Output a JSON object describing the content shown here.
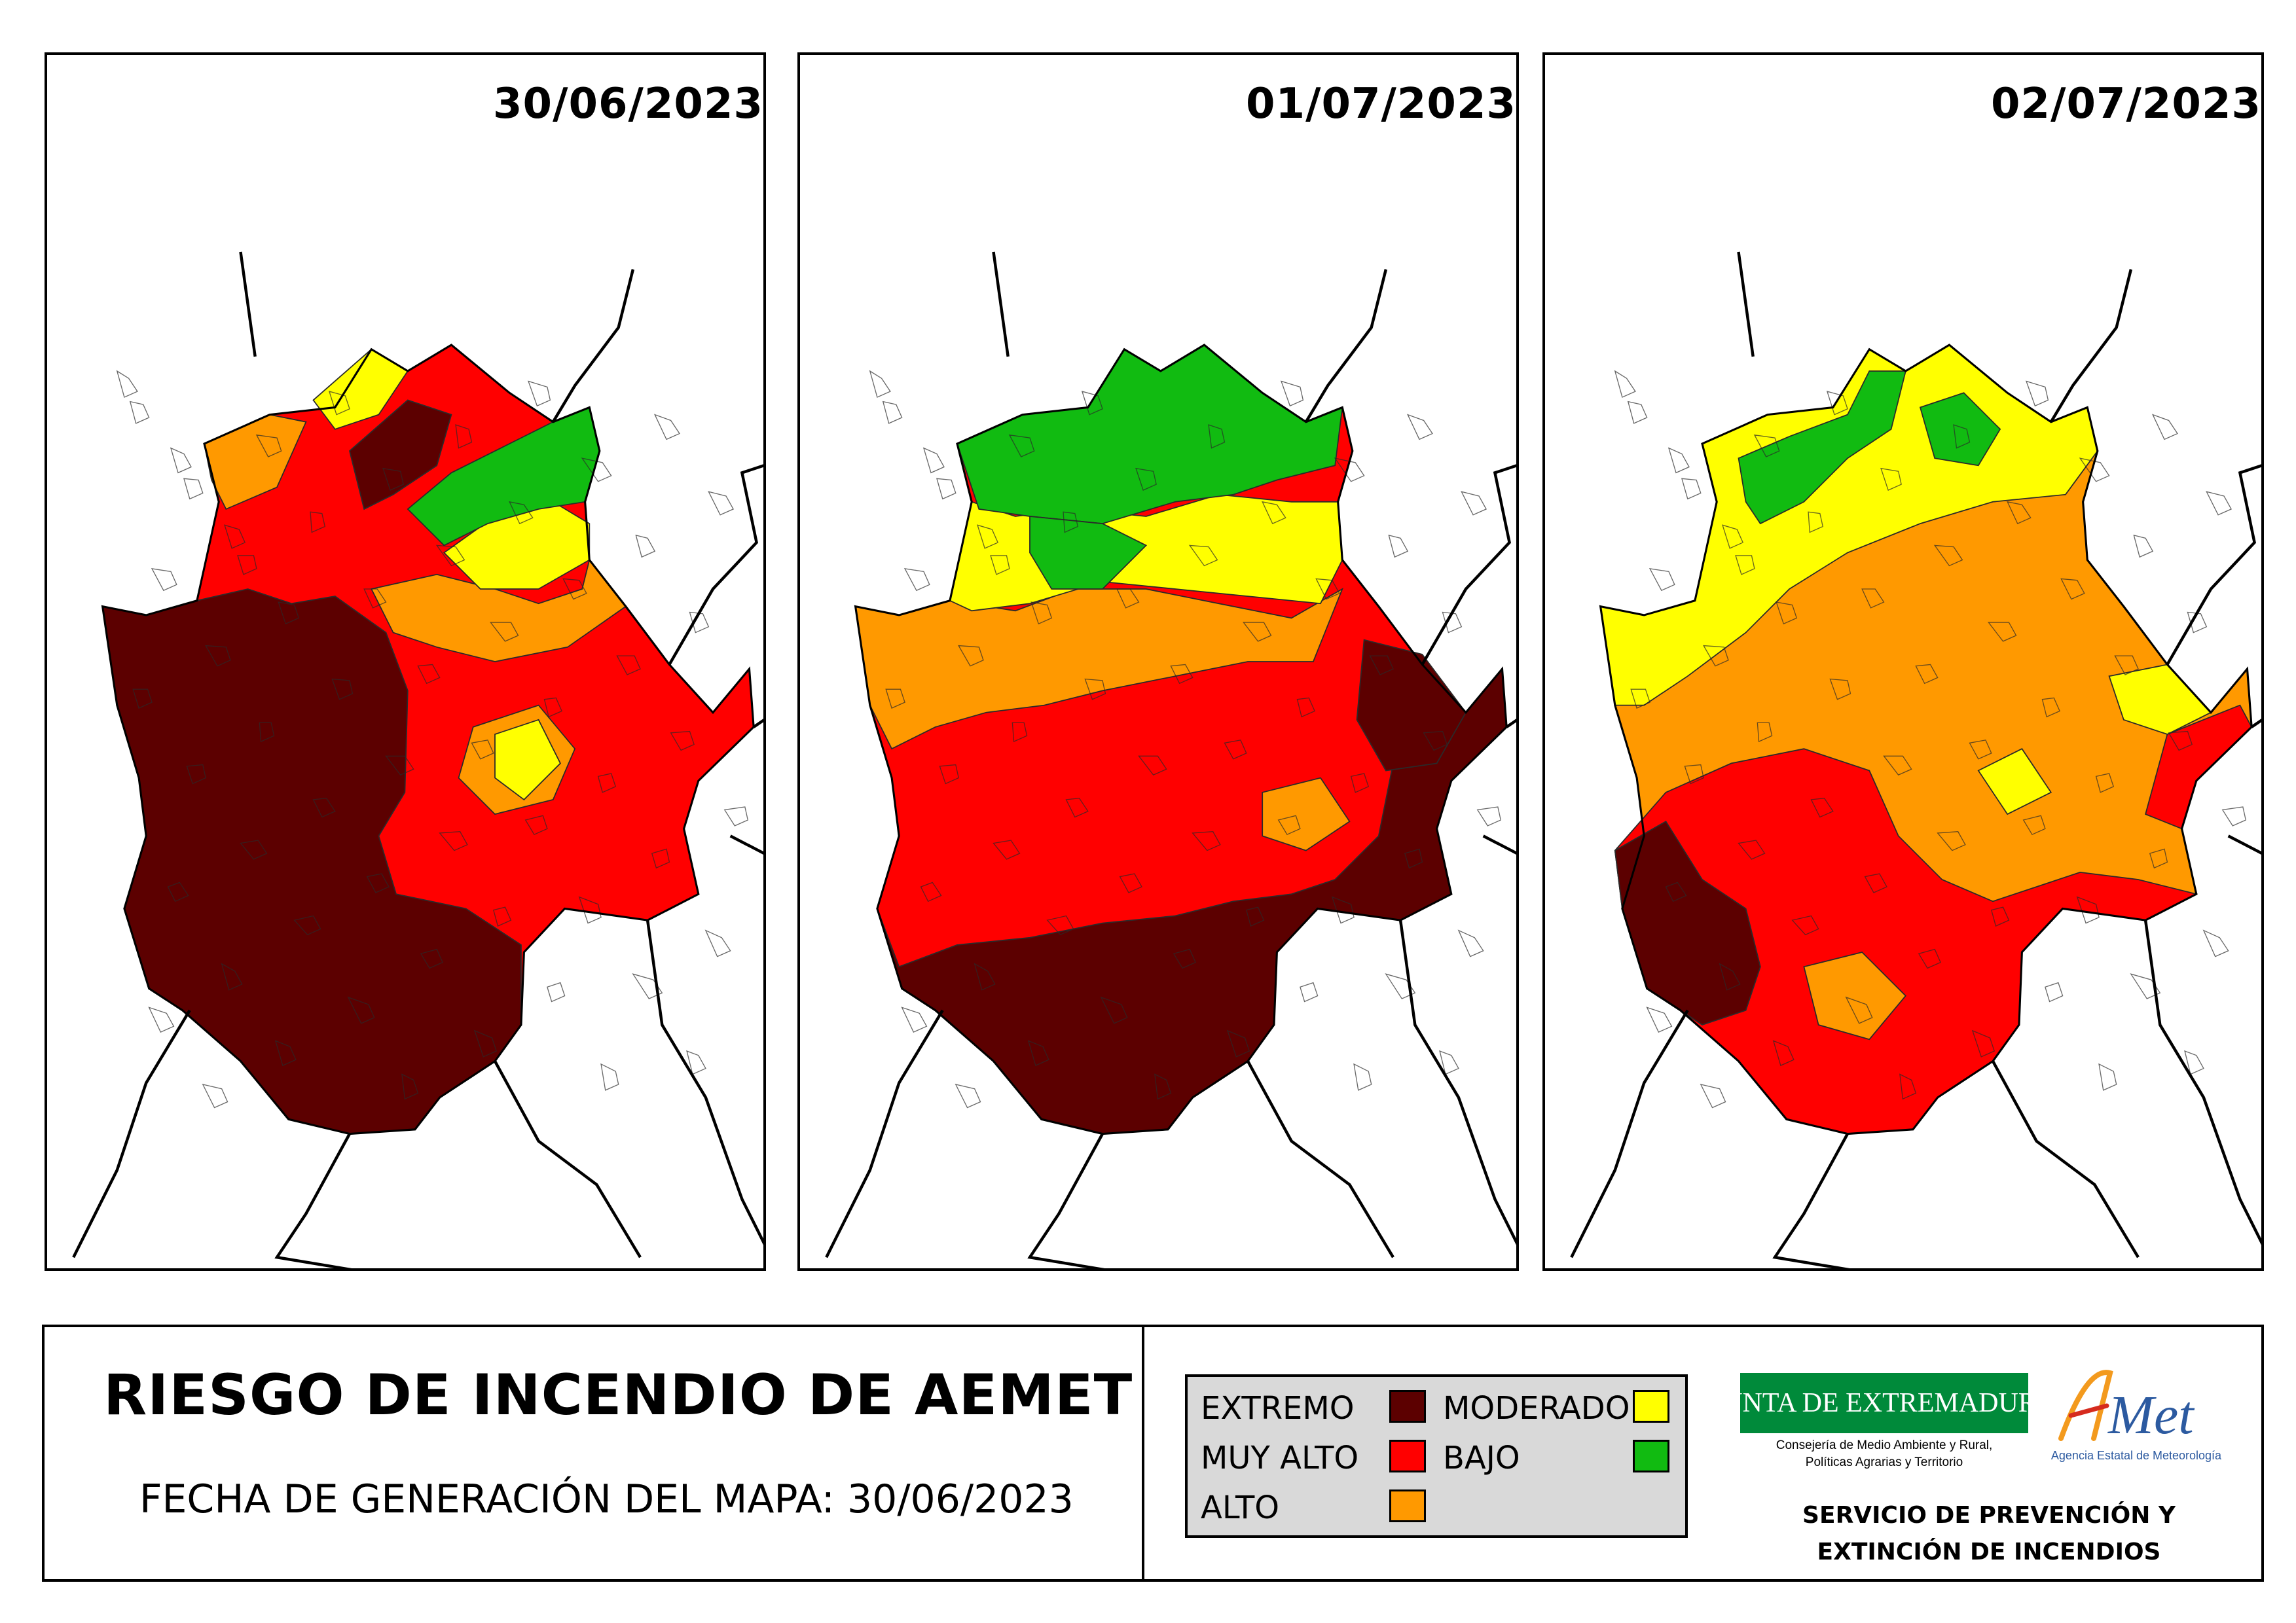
{
  "maps": [
    {
      "date": "30/06/2023"
    },
    {
      "date": "01/07/2023"
    },
    {
      "date": "02/07/2023"
    }
  ],
  "footer": {
    "title": "RIESGO DE INCENDIO DE AEMET",
    "generation_date": "FECHA DE GENERACIÓN DEL MAPA: 30/06/2023"
  },
  "legend": {
    "items": [
      {
        "label": "EXTREMO",
        "color": "#5c0000"
      },
      {
        "label": "MUY ALTO",
        "color": "#ff0000"
      },
      {
        "label": "ALTO",
        "color": "#ff9900"
      },
      {
        "label": "MODERADO",
        "color": "#ffff00"
      },
      {
        "label": "BAJO",
        "color": "#11bb11"
      }
    ]
  },
  "logos": {
    "junta_name": "JUNTA DE EXTREMADURA",
    "junta_subtitle_line1": "Consejería de Medio Ambiente y Rural,",
    "junta_subtitle_line2": "Políticas Agrarias y Territorio",
    "aemet_name": "AEMet",
    "aemet_subtitle": "Agencia Estatal de Meteorología"
  },
  "service": {
    "line1": "SERVICIO DE PREVENCIÓN Y",
    "line2": "EXTINCIÓN DE INCENDIOS"
  }
}
